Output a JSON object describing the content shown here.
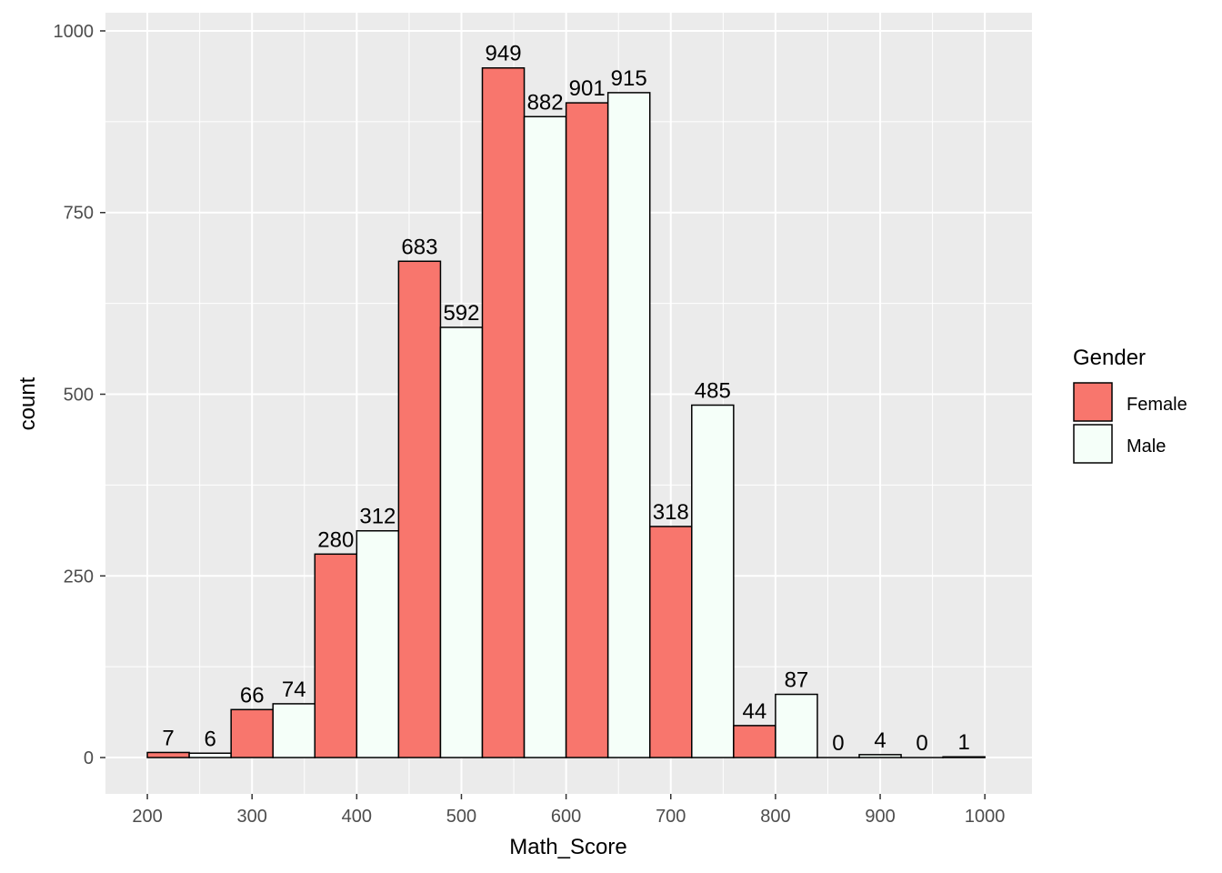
{
  "chart_data": {
    "type": "bar",
    "xlabel": "Math_Score",
    "ylabel": "count",
    "xlim": [
      160,
      1045
    ],
    "ylim": [
      -50,
      1025
    ],
    "xticks": [
      200,
      300,
      400,
      500,
      600,
      700,
      800,
      900,
      1000
    ],
    "yticks": [
      0,
      250,
      500,
      750,
      1000
    ],
    "grid": true,
    "bin_width": 80,
    "bin_centers": [
      240,
      320,
      400,
      480,
      560,
      640,
      720,
      800,
      880,
      960
    ],
    "series": [
      {
        "name": "Female",
        "color": "#f8766d",
        "values": [
          7,
          66,
          280,
          683,
          949,
          901,
          318,
          44,
          0,
          0
        ]
      },
      {
        "name": "Male",
        "color": "#f5fff9",
        "values": [
          6,
          74,
          312,
          592,
          882,
          915,
          485,
          87,
          4,
          1
        ]
      }
    ],
    "legend": {
      "title": "Gender",
      "position": "right"
    }
  }
}
